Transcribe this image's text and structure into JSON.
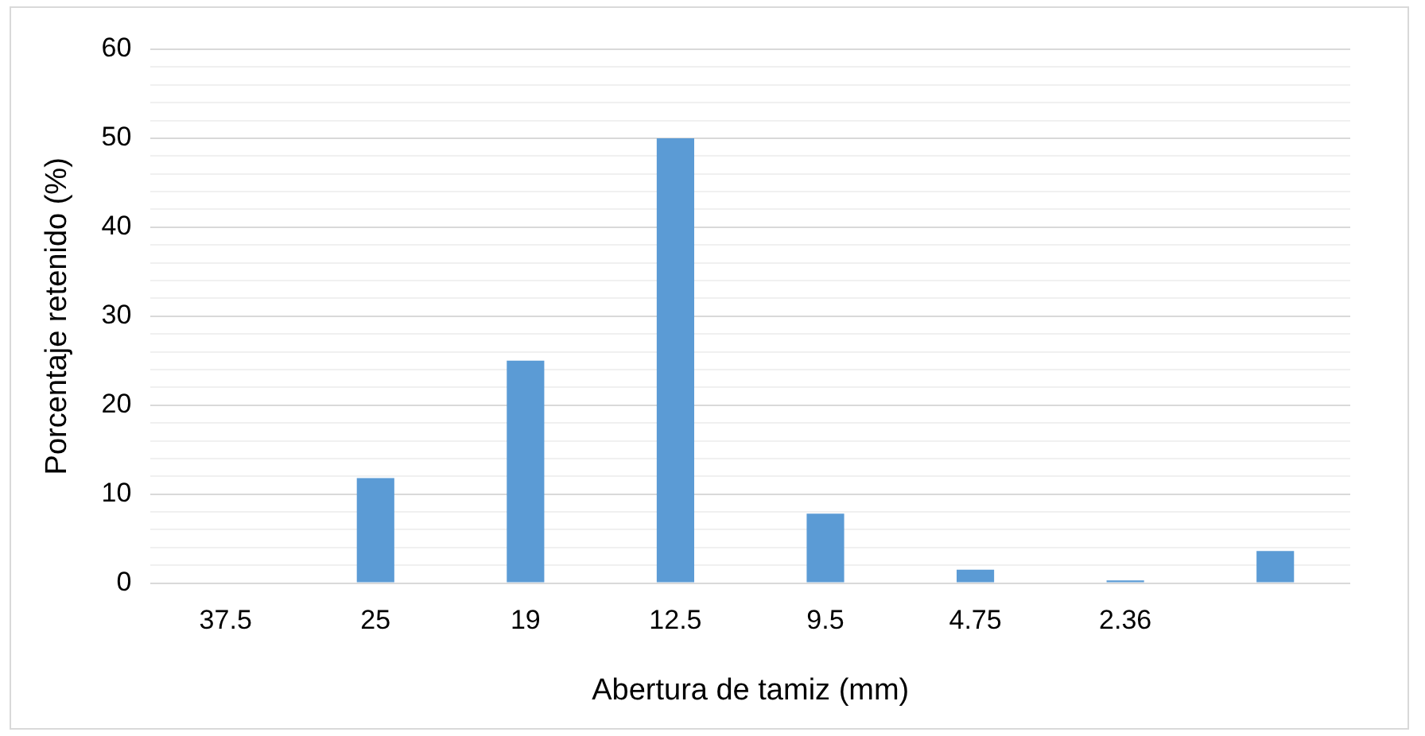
{
  "chart_data": {
    "type": "bar",
    "xlabel": "Abertura de tamiz (mm)",
    "ylabel": "Porcentaje retenido (%)",
    "categories": [
      "37.5",
      "25",
      "19",
      "12.5",
      "9.5",
      "4.75",
      "2.36",
      null
    ],
    "values": [
      0,
      11.8,
      25,
      50,
      7.8,
      1.5,
      0.3,
      3.6
    ],
    "color": "#5b9bd5",
    "ylim": [
      0,
      60
    ],
    "yticks": [
      0,
      {
        "value": 2,
        "label": null
      },
      {
        "value": 4,
        "label": null
      },
      {
        "value": 6,
        "label": null
      },
      {
        "value": 8,
        "label": null
      },
      10,
      {
        "value": 12,
        "label": null
      },
      {
        "value": 14,
        "label": null
      },
      {
        "value": 16,
        "label": null
      },
      {
        "value": 18,
        "label": null
      },
      20,
      {
        "value": 22,
        "label": null
      },
      {
        "value": 24,
        "label": null
      },
      {
        "value": 26,
        "label": null
      },
      {
        "value": 28,
        "label": null
      },
      30,
      {
        "value": 32,
        "label": null
      },
      {
        "value": 34,
        "label": null
      },
      {
        "value": 36,
        "label": null
      },
      {
        "value": 38,
        "label": null
      },
      40,
      {
        "value": 42,
        "label": null
      },
      {
        "value": 44,
        "label": null
      },
      {
        "value": 46,
        "label": null
      },
      {
        "value": 48,
        "label": null
      },
      50,
      {
        "value": 52,
        "label": null
      },
      {
        "value": 54,
        "label": null
      },
      {
        "value": 56,
        "label": null
      },
      {
        "value": 58,
        "label": null
      },
      60
    ],
    "grid": "y",
    "legend": false
  }
}
